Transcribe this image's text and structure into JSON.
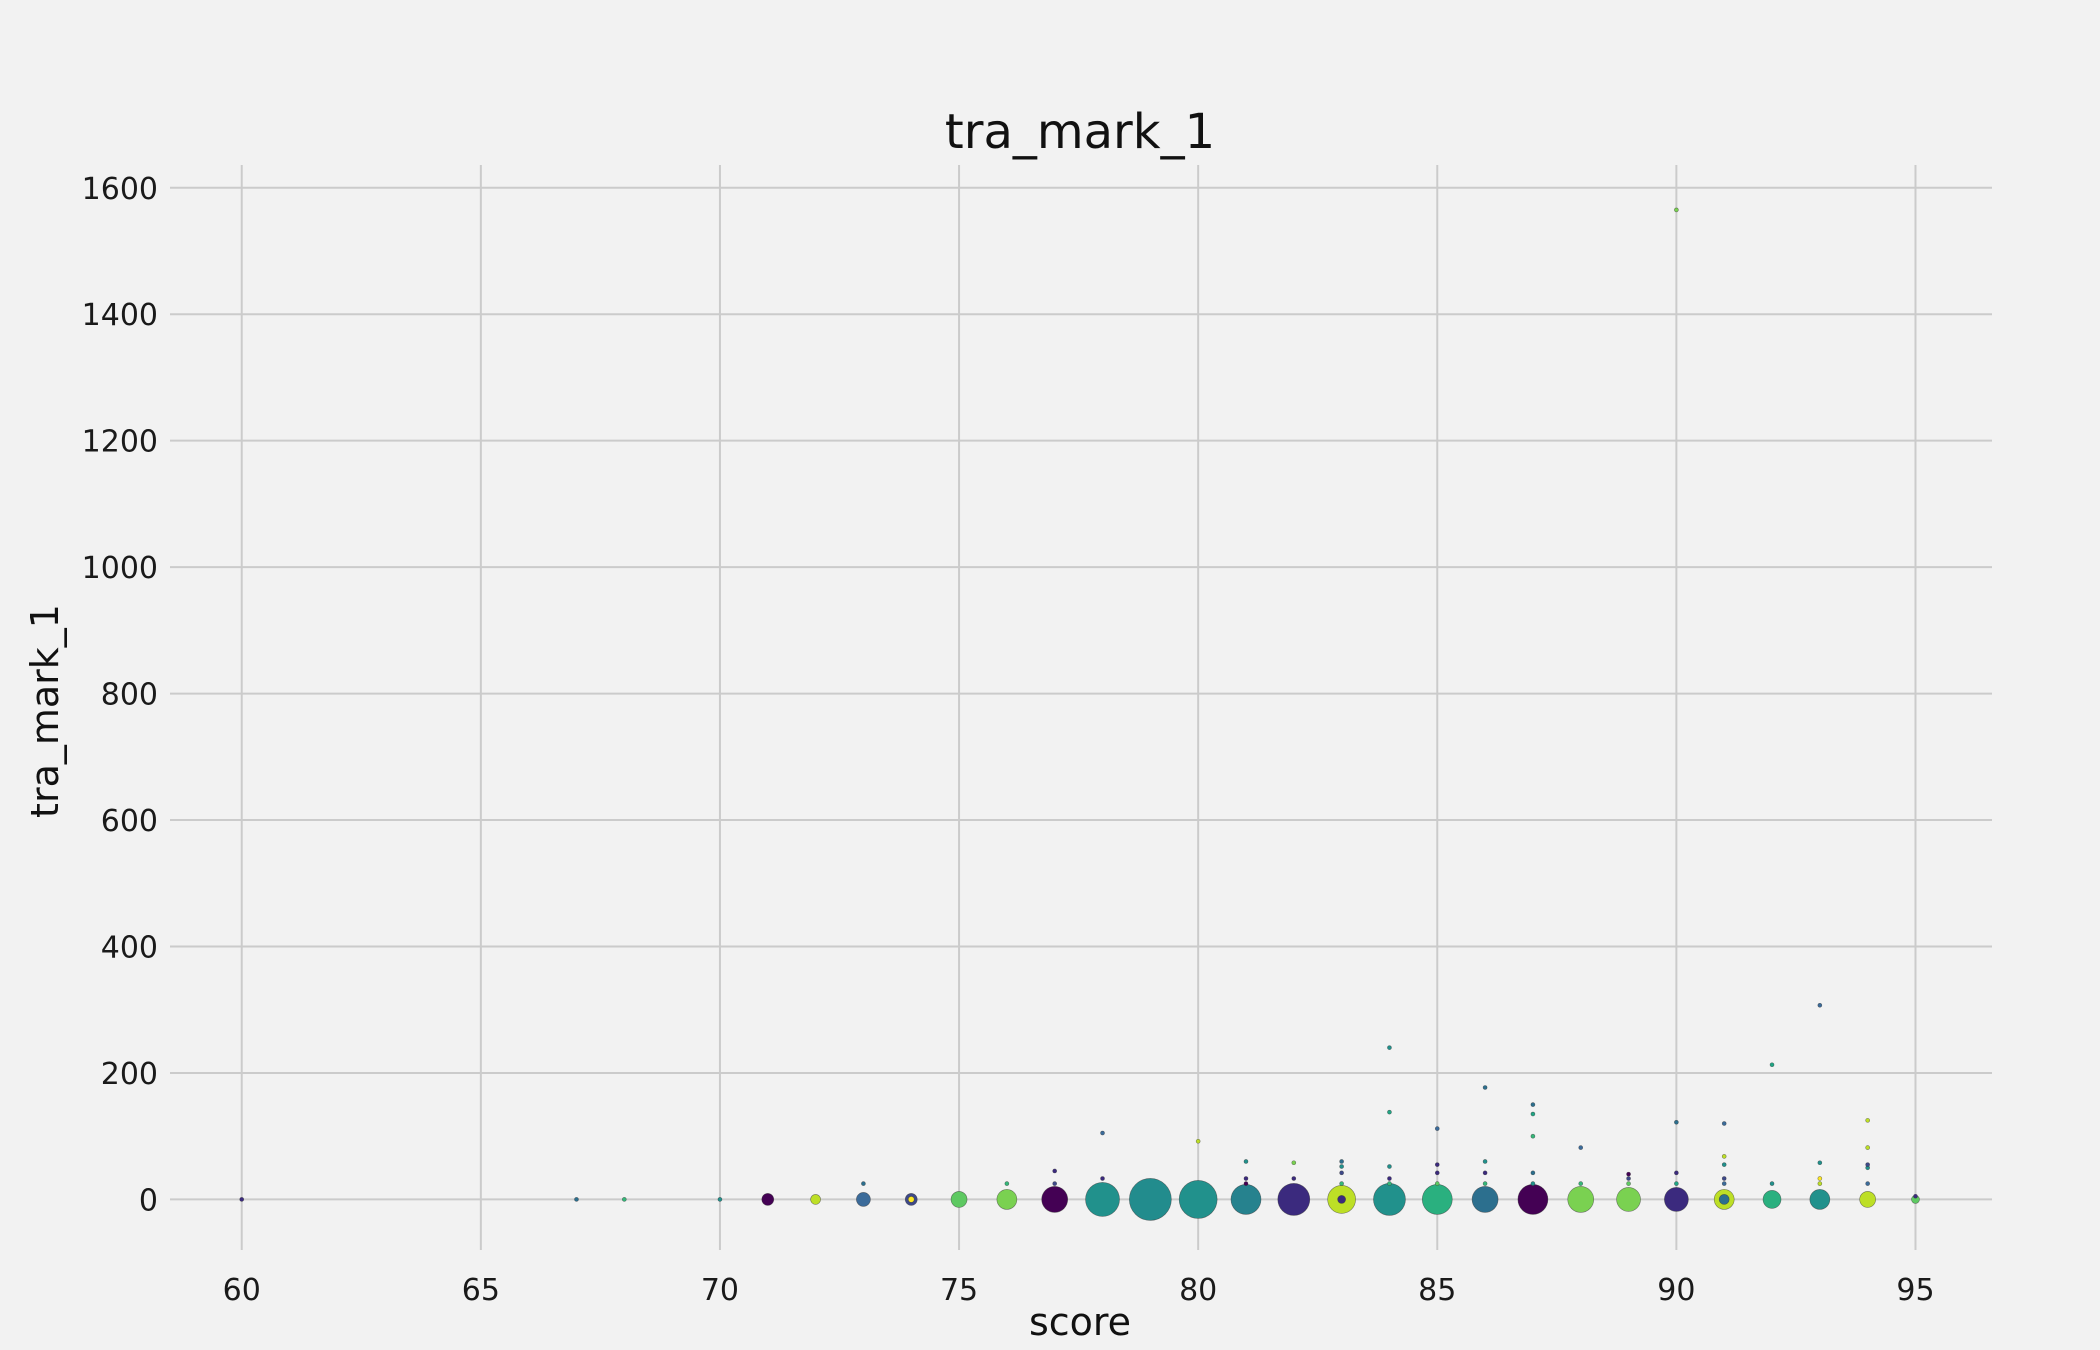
{
  "chart_data": {
    "type": "scatter",
    "title": "tra_mark_1",
    "xlabel": "score",
    "ylabel": "tra_mark_1",
    "xlim": [
      58.5,
      96.6
    ],
    "ylim": [
      -80,
      1636
    ],
    "xticks": [
      60,
      65,
      70,
      75,
      80,
      85,
      90,
      95
    ],
    "yticks": [
      0,
      200,
      400,
      600,
      800,
      1000,
      1200,
      1400,
      1600
    ],
    "grid": true,
    "legend": "none",
    "encoding": "bubble radius and fill color vary per point",
    "points": [
      {
        "x": 60,
        "y": 0,
        "r": 2,
        "color": "#3b2a7e"
      },
      {
        "x": 67,
        "y": 0,
        "r": 2,
        "color": "#2c6f8e"
      },
      {
        "x": 68,
        "y": 0,
        "r": 2,
        "color": "#35b779"
      },
      {
        "x": 70,
        "y": 0,
        "r": 2,
        "color": "#21918c"
      },
      {
        "x": 71,
        "y": 0,
        "r": 6,
        "color": "#440154"
      },
      {
        "x": 72,
        "y": 0,
        "r": 5,
        "color": "#bddf26"
      },
      {
        "x": 73,
        "y": 0,
        "r": 7,
        "color": "#3b6b9a"
      },
      {
        "x": 73,
        "y": 25,
        "r": 2,
        "color": "#2c6f8e"
      },
      {
        "x": 74,
        "y": 0,
        "r": 6,
        "color": "#3e4989"
      },
      {
        "x": 74,
        "y": 0,
        "r": 3,
        "color": "#fde725"
      },
      {
        "x": 75,
        "y": 0,
        "r": 8,
        "color": "#5ec962"
      },
      {
        "x": 76,
        "y": 0,
        "r": 10,
        "color": "#7ad151"
      },
      {
        "x": 76,
        "y": 25,
        "r": 2,
        "color": "#35b779"
      },
      {
        "x": 77,
        "y": 0,
        "r": 13,
        "color": "#440154"
      },
      {
        "x": 77,
        "y": 25,
        "r": 2,
        "color": "#3e4989"
      },
      {
        "x": 77,
        "y": 45,
        "r": 2,
        "color": "#3b2a7e"
      },
      {
        "x": 78,
        "y": 0,
        "r": 17,
        "color": "#21918c"
      },
      {
        "x": 78,
        "y": 33,
        "r": 2,
        "color": "#3b2a7e"
      },
      {
        "x": 78,
        "y": 105,
        "r": 2,
        "color": "#3b6b9a"
      },
      {
        "x": 79,
        "y": 0,
        "r": 21,
        "color": "#228c8d"
      },
      {
        "x": 80,
        "y": 0,
        "r": 19,
        "color": "#21918c"
      },
      {
        "x": 80,
        "y": 92,
        "r": 2,
        "color": "#bddf26"
      },
      {
        "x": 81,
        "y": 0,
        "r": 15,
        "color": "#26828e"
      },
      {
        "x": 81,
        "y": 25,
        "r": 2,
        "color": "#440154"
      },
      {
        "x": 81,
        "y": 33,
        "r": 2,
        "color": "#3b2a7e"
      },
      {
        "x": 81,
        "y": 60,
        "r": 2,
        "color": "#21918c"
      },
      {
        "x": 82,
        "y": 0,
        "r": 16,
        "color": "#3b2a7e"
      },
      {
        "x": 82,
        "y": 33,
        "r": 2,
        "color": "#3b2a7e"
      },
      {
        "x": 82,
        "y": 58,
        "r": 2,
        "color": "#7ad151"
      },
      {
        "x": 83,
        "y": 0,
        "r": 14,
        "color": "#bddf26"
      },
      {
        "x": 83,
        "y": 0,
        "r": 4,
        "color": "#3b2a7e"
      },
      {
        "x": 83,
        "y": 25,
        "r": 2,
        "color": "#35b779"
      },
      {
        "x": 83,
        "y": 42,
        "r": 2,
        "color": "#3e4989"
      },
      {
        "x": 83,
        "y": 52,
        "r": 2,
        "color": "#21918c"
      },
      {
        "x": 83,
        "y": 60,
        "r": 2,
        "color": "#2c6f8e"
      },
      {
        "x": 84,
        "y": 0,
        "r": 16,
        "color": "#21918c"
      },
      {
        "x": 84,
        "y": 25,
        "r": 2,
        "color": "#35b779"
      },
      {
        "x": 84,
        "y": 33,
        "r": 2,
        "color": "#3b2a7e"
      },
      {
        "x": 84,
        "y": 52,
        "r": 2,
        "color": "#21918c"
      },
      {
        "x": 84,
        "y": 138,
        "r": 2,
        "color": "#21a685"
      },
      {
        "x": 84,
        "y": 240,
        "r": 2,
        "color": "#21918c"
      },
      {
        "x": 85,
        "y": 0,
        "r": 15,
        "color": "#2ab07f"
      },
      {
        "x": 85,
        "y": 25,
        "r": 2,
        "color": "#5ec962"
      },
      {
        "x": 85,
        "y": 42,
        "r": 2,
        "color": "#3b2a7e"
      },
      {
        "x": 85,
        "y": 55,
        "r": 2,
        "color": "#3b2a7e"
      },
      {
        "x": 85,
        "y": 112,
        "r": 2,
        "color": "#3b6b9a"
      },
      {
        "x": 86,
        "y": 0,
        "r": 13,
        "color": "#2c6f8e"
      },
      {
        "x": 86,
        "y": 25,
        "r": 2,
        "color": "#35b779"
      },
      {
        "x": 86,
        "y": 42,
        "r": 2,
        "color": "#3b2a7e"
      },
      {
        "x": 86,
        "y": 60,
        "r": 2,
        "color": "#21918c"
      },
      {
        "x": 86,
        "y": 177,
        "r": 2,
        "color": "#2c6f8e"
      },
      {
        "x": 87,
        "y": 0,
        "r": 15,
        "color": "#440154"
      },
      {
        "x": 87,
        "y": 25,
        "r": 2,
        "color": "#21918c"
      },
      {
        "x": 87,
        "y": 42,
        "r": 2,
        "color": "#2c6f8e"
      },
      {
        "x": 87,
        "y": 100,
        "r": 2,
        "color": "#35b779"
      },
      {
        "x": 87,
        "y": 135,
        "r": 2,
        "color": "#21a685"
      },
      {
        "x": 87,
        "y": 150,
        "r": 2,
        "color": "#2c6f8e"
      },
      {
        "x": 88,
        "y": 0,
        "r": 13,
        "color": "#7ad151"
      },
      {
        "x": 88,
        "y": 25,
        "r": 2,
        "color": "#35b779"
      },
      {
        "x": 88,
        "y": 82,
        "r": 2,
        "color": "#3b6b9a"
      },
      {
        "x": 89,
        "y": 0,
        "r": 12,
        "color": "#7ad151"
      },
      {
        "x": 89,
        "y": 25,
        "r": 2,
        "color": "#5ec962"
      },
      {
        "x": 89,
        "y": 33,
        "r": 2,
        "color": "#3e4989"
      },
      {
        "x": 89,
        "y": 40,
        "r": 2,
        "color": "#440154"
      },
      {
        "x": 90,
        "y": 0,
        "r": 12,
        "color": "#3b2a7e"
      },
      {
        "x": 90,
        "y": 25,
        "r": 2,
        "color": "#21a685"
      },
      {
        "x": 90,
        "y": 42,
        "r": 2,
        "color": "#3b2a7e"
      },
      {
        "x": 90,
        "y": 122,
        "r": 2,
        "color": "#2c6f8e"
      },
      {
        "x": 90,
        "y": 1565,
        "r": 2,
        "color": "#7ad151"
      },
      {
        "x": 91,
        "y": 0,
        "r": 10,
        "color": "#bddf26"
      },
      {
        "x": 91,
        "y": 0,
        "r": 5,
        "color": "#2c6f8e"
      },
      {
        "x": 91,
        "y": 25,
        "r": 2,
        "color": "#3b6b9a"
      },
      {
        "x": 91,
        "y": 33,
        "r": 2,
        "color": "#3e4989"
      },
      {
        "x": 91,
        "y": 55,
        "r": 2,
        "color": "#21918c"
      },
      {
        "x": 91,
        "y": 68,
        "r": 2,
        "color": "#bddf26"
      },
      {
        "x": 91,
        "y": 120,
        "r": 2,
        "color": "#3b6b9a"
      },
      {
        "x": 92,
        "y": 0,
        "r": 9,
        "color": "#2ab07f"
      },
      {
        "x": 92,
        "y": 25,
        "r": 2,
        "color": "#21918c"
      },
      {
        "x": 92,
        "y": 213,
        "r": 2,
        "color": "#21a685"
      },
      {
        "x": 93,
        "y": 0,
        "r": 10,
        "color": "#21918c"
      },
      {
        "x": 93,
        "y": 25,
        "r": 2,
        "color": "#bddf26"
      },
      {
        "x": 93,
        "y": 33,
        "r": 2,
        "color": "#fde725"
      },
      {
        "x": 93,
        "y": 58,
        "r": 2,
        "color": "#21918c"
      },
      {
        "x": 93,
        "y": 307,
        "r": 2,
        "color": "#3b6b9a"
      },
      {
        "x": 94,
        "y": 0,
        "r": 8,
        "color": "#bddf26"
      },
      {
        "x": 94,
        "y": 25,
        "r": 2,
        "color": "#3b6b9a"
      },
      {
        "x": 94,
        "y": 50,
        "r": 2,
        "color": "#21918c"
      },
      {
        "x": 94,
        "y": 55,
        "r": 2,
        "color": "#3e4989"
      },
      {
        "x": 94,
        "y": 82,
        "r": 2,
        "color": "#bddf26"
      },
      {
        "x": 94,
        "y": 125,
        "r": 2,
        "color": "#bddf26"
      },
      {
        "x": 95,
        "y": 0,
        "r": 4,
        "color": "#5ec962"
      },
      {
        "x": 95,
        "y": 5,
        "r": 2,
        "color": "#3b2a7e"
      }
    ]
  }
}
